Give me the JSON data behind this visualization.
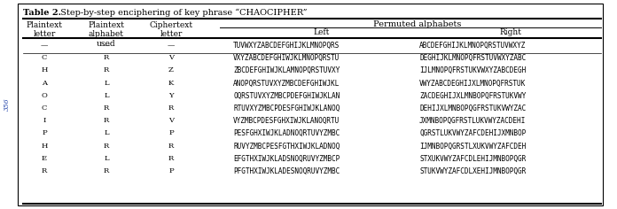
{
  "title_bold": "Table 2.",
  "title_rest": "  Step-by-step enciphering of key phrase “CHAOCIPHER”",
  "rows": [
    [
      "—",
      "—",
      "—",
      "TUVWXYZABCDEFGHIJKLMNOPQRS",
      "ABCDEFGHIJKLMNOPQRSTUVWXYZ"
    ],
    [
      "C",
      "R",
      "V",
      "VXYZABCDEFGHIWJKLMNOPQRSTU",
      "DEGHIJKLMNOPQFRSTUVWXYZABC"
    ],
    [
      "H",
      "R",
      "Z",
      "ZBCDEFGHIWJKLAMNOPQRSTUVXY",
      "IJLMNOPQFRSTUKVWXYZABCDEGH"
    ],
    [
      "A",
      "L",
      "K",
      "ANOPQRSTUVXYZMBCDEFGHIWJKL",
      "VWYZABCDEGHIJXLMNOPQFRSTUK"
    ],
    [
      "O",
      "L",
      "Y",
      "OQRSTUVXYZMBCPDEFGHIWJKLAN",
      "ZACDEGHIJXLMNBOPQFRSTUKVWY"
    ],
    [
      "C",
      "R",
      "R",
      "RTUVXYZMBCPDESFGHIWJKLANOQ",
      "DEHIJXLMNBOPQGFRSTUKVWYZAC"
    ],
    [
      "I",
      "R",
      "V",
      "VYZMBCPDESFGHXIWJKLANOQRTU",
      "JXMNBOPQGFRSTLUKVWYZACDEHI"
    ],
    [
      "P",
      "L",
      "P",
      "PESFGHXIWJKLADNOQRTUVYZMBC",
      "QGRSTLUKVWYZAFCDEHIJXMNBOP"
    ],
    [
      "H",
      "R",
      "R",
      "RUVYZMBCPESFGTHXIWJKLADNOQ",
      "IJMNBOPQGRSTLXUKVWYZAFCDEH"
    ],
    [
      "E",
      "L",
      "R",
      "EFGTHXIWJKLADSNOQRUVYZMBCP",
      "STXUKVWYZAFCDLEHIJMNBOPQGR"
    ],
    [
      "R",
      "R",
      "P",
      "PFGTHXIWJKLADESNOQRUVYZMBC",
      "STUKVWYZAFCDLXEHIJMNBOPQGR"
    ]
  ],
  "side_text": "356",
  "bg_color": "#ffffff",
  "border_color": "#000000",
  "text_color": "#000000"
}
